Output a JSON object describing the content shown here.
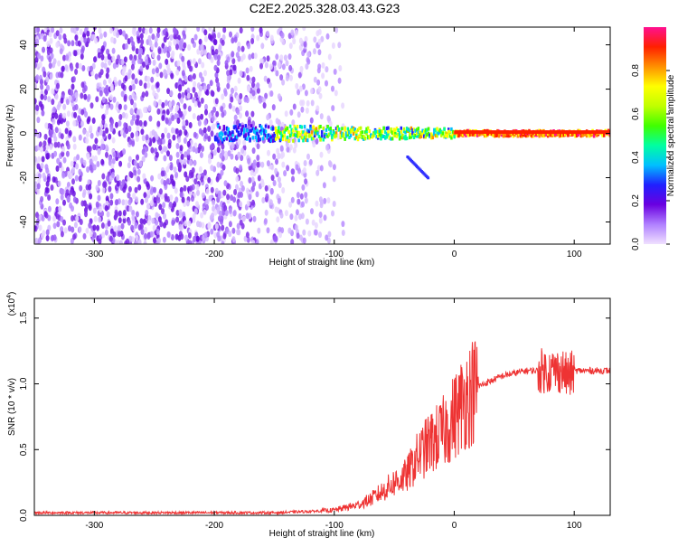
{
  "title": "C2E2.2025.328.03.43.G23",
  "chart_data": [
    {
      "type": "heatmap",
      "name": "spectrogram",
      "xlabel": "Height of straight line (km)",
      "ylabel": "Frequency (Hz)",
      "xlim": [
        -350,
        130
      ],
      "ylim": [
        -50,
        48
      ],
      "xticks": [
        -300,
        -200,
        -100,
        0,
        100
      ],
      "yticks": [
        -40,
        -20,
        0,
        20,
        40
      ],
      "colorbar": {
        "label": "Normalized spectral amplitude",
        "range": [
          0,
          1
        ],
        "ticks": [
          0.0,
          0.2,
          0.4,
          0.6,
          0.8
        ],
        "tick_labels": [
          "0.0",
          "0.2",
          "0.4",
          "0.6",
          "0.8"
        ],
        "colormap": [
          "#f0e0ff",
          "#b080ff",
          "#6a00e0",
          "#2020ff",
          "#00c0ff",
          "#00ffa0",
          "#40ff00",
          "#c0ff00",
          "#ffff00",
          "#ff9000",
          "#ff2000",
          "#ff1090"
        ]
      },
      "features": {
        "noise_region_x": [
          -350,
          -110
        ],
        "signal_band_freq": 0,
        "signal_start_x": -200,
        "tail_start": [
          -40,
          -10
        ],
        "tail_end": [
          -22,
          -20
        ]
      }
    },
    {
      "type": "line",
      "name": "snr",
      "xlabel": "Height of straight line (km)",
      "ylabel": "SNR (10 * v/v)",
      "scale_label": "(x10",
      "scale_exp": "4",
      "xlim": [
        -350,
        130
      ],
      "ylim": [
        0,
        1.65
      ],
      "xticks": [
        -300,
        -200,
        -100,
        0,
        100
      ],
      "yticks": [
        0.0,
        0.5,
        1.0,
        1.5
      ],
      "ytick_labels": [
        "0.0",
        "0.5",
        "1.0",
        "1.5"
      ],
      "color": "#ee3333",
      "series": [
        {
          "name": "SNR",
          "x": [
            -350,
            -300,
            -250,
            -200,
            -150,
            -120,
            -100,
            -80,
            -70,
            -60,
            -50,
            -40,
            -30,
            -20,
            -10,
            0,
            10,
            20,
            30,
            40,
            50,
            60,
            70,
            80,
            90,
            95,
            100,
            110,
            120,
            130
          ],
          "y": [
            0.02,
            0.02,
            0.02,
            0.02,
            0.02,
            0.03,
            0.04,
            0.08,
            0.12,
            0.18,
            0.25,
            0.3,
            0.45,
            0.55,
            0.62,
            0.75,
            0.9,
            0.98,
            1.02,
            1.06,
            1.08,
            1.1,
            1.1,
            1.1,
            1.1,
            1.05,
            1.1,
            1.1,
            1.1,
            1.1
          ]
        }
      ]
    }
  ]
}
